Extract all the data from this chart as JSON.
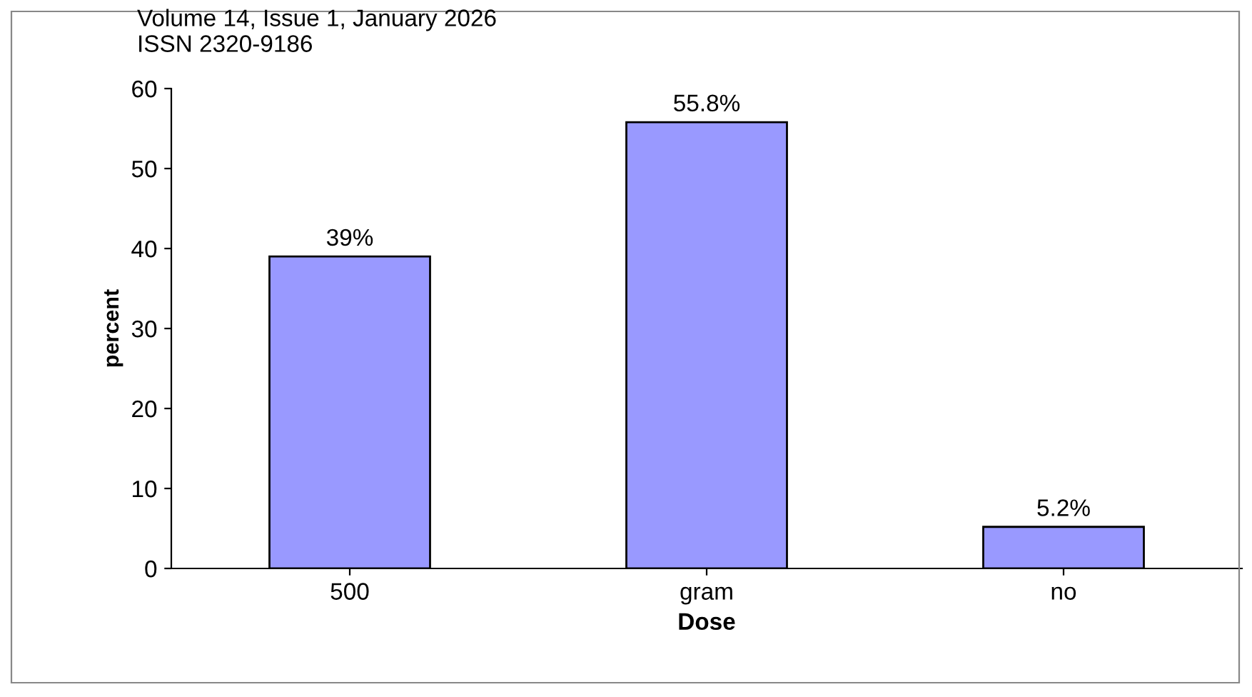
{
  "chart_data": {
    "type": "bar",
    "categories": [
      "500",
      "gram",
      "no"
    ],
    "values": [
      39,
      55.8,
      5.2
    ],
    "value_labels": [
      "39%",
      "55.8%",
      "5.2%"
    ],
    "color": "#9999ff",
    "xlabel": "Dose",
    "ylabel": "percent",
    "ylim": [
      0,
      60
    ],
    "yticks": [
      0,
      10,
      20,
      30,
      40,
      50,
      60
    ],
    "grid": false,
    "legend": false,
    "annotations": [
      "Volume 14, Issue 1, January 2026",
      "ISSN 2320-9186"
    ]
  }
}
